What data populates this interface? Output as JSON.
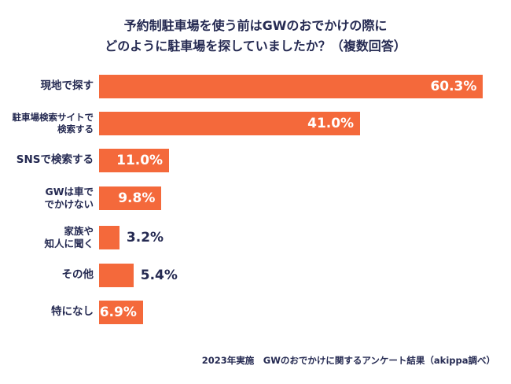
{
  "title": {
    "line1": "予約制駐車場を使う前はGWのおでかけの際に",
    "line2": "どのように駐車場を探していましたか？（複数回答）"
  },
  "footer_note": "2023年実施　GWのおでかけに関するアンケート結果（akippa調べ）",
  "colors": {
    "bar": "#f4693b",
    "text": "#252a52",
    "inside_value_text": "#ffffff",
    "background": "#ffffff"
  },
  "chart_data": {
    "type": "bar",
    "orientation": "horizontal",
    "title": "予約制駐車場を使う前はGWのおでかけの際に どのように駐車場を探していましたか？（複数回答）",
    "categories": [
      "現地で探す",
      "駐車場検索サイトで検索する",
      "SNSで検索する",
      "GWは車ででかけない",
      "家族や知人に聞く",
      "その他",
      "特になし"
    ],
    "label_lines": [
      [
        "現地で探す"
      ],
      [
        "駐車場検索サイトで",
        "検索する"
      ],
      [
        "SNSで検索する"
      ],
      [
        "GWは車で",
        "でかけない"
      ],
      [
        "家族や",
        "知人に聞く"
      ],
      [
        "その他"
      ],
      [
        "特になし"
      ]
    ],
    "values": [
      60.3,
      41.0,
      11.0,
      9.8,
      3.2,
      5.4,
      6.9
    ],
    "value_labels": [
      "60.3%",
      "41.0%",
      "11.0%",
      "9.8%",
      "3.2%",
      "5.4%",
      "6.9%"
    ],
    "value_label_position": [
      "inside",
      "inside",
      "inside",
      "inside",
      "outside",
      "outside",
      "inside"
    ],
    "xlim": [
      0,
      62
    ],
    "grid": false,
    "legend": "none"
  }
}
